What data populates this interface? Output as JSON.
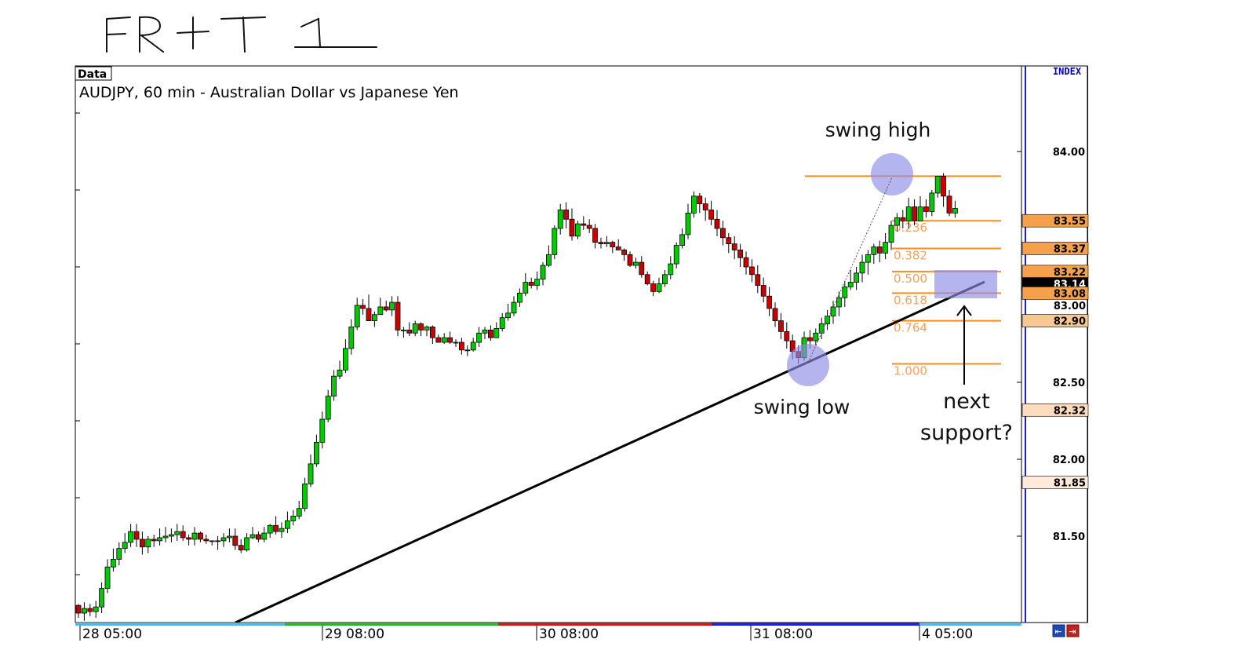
{
  "handwritten_title": "FR + T 1",
  "data_tab": "Data",
  "index_label": "INDEX",
  "annotations": {
    "swing_high": "swing high",
    "swing_low": "swing low",
    "next_support_line1": "next",
    "next_support_line2": "support?"
  },
  "colors": {
    "up_candle": "#00cc00",
    "down_candle": "#cc0000",
    "fib_line": "#ff8c1a",
    "fib_text": "#f2a35c",
    "highlight": "#8c8ce6",
    "trendline": "#000000",
    "axis_blue": "#0000c8"
  },
  "chart_data": {
    "type": "candlestick",
    "title": "AUDJPY, 60 min - Australian Dollar vs Japanese Yen",
    "ylim": [
      81.0,
      84.4
    ],
    "yticks": [
      "84.00",
      "82.50",
      "82.00",
      "81.50"
    ],
    "price_boxes": [
      {
        "label": "83.55",
        "value": 83.55,
        "color": "#f5a04b"
      },
      {
        "label": "83.37",
        "value": 83.37,
        "color": "#f5a04b"
      },
      {
        "label": "83.22",
        "value": 83.22,
        "color": "#f5a04b"
      },
      {
        "label": "83.14",
        "value": 83.14,
        "color": "#000000"
      },
      {
        "label": "83.08",
        "value": 83.08,
        "color": "#f5a04b"
      },
      {
        "label": "83.00",
        "value": 83.0,
        "color": "#ffffff"
      },
      {
        "label": "82.90",
        "value": 82.9,
        "color": "#f8c892"
      },
      {
        "label": "82.32",
        "value": 82.32,
        "color": "#fbdcbc"
      },
      {
        "label": "81.85",
        "value": 81.85,
        "color": "#fdeada"
      }
    ],
    "x_labels": [
      "28 05:00",
      "29 08:00",
      "30 08:00",
      "31 08:00",
      "4 05:00"
    ],
    "fib_levels": [
      {
        "ratio": "",
        "price": 83.84
      },
      {
        "ratio": "0.236",
        "price": 83.55
      },
      {
        "ratio": "0.382",
        "price": 83.37
      },
      {
        "ratio": "0.500",
        "price": 83.22
      },
      {
        "ratio": "0.618",
        "price": 83.08
      },
      {
        "ratio": "0.764",
        "price": 82.9
      },
      {
        "ratio": "1.000",
        "price": 82.62
      }
    ],
    "trendline": {
      "from": [
        29,
        81.0
      ],
      "to": [
        159,
        83.14
      ]
    },
    "candles": [
      [
        81.05,
        81.0,
        81.06,
        80.97
      ],
      [
        81.0,
        81.03,
        81.07,
        80.95
      ],
      [
        81.03,
        81.01,
        81.06,
        80.98
      ],
      [
        81.01,
        81.04,
        81.08,
        80.97
      ],
      [
        81.04,
        81.16,
        81.2,
        81.0
      ],
      [
        81.16,
        81.3,
        81.35,
        81.13
      ],
      [
        81.3,
        81.35,
        81.42,
        81.27
      ],
      [
        81.35,
        81.42,
        81.46,
        81.31
      ],
      [
        81.42,
        81.46,
        81.52,
        81.39
      ],
      [
        81.46,
        81.53,
        81.58,
        81.43
      ],
      [
        81.53,
        81.48,
        81.58,
        81.43
      ],
      [
        81.48,
        81.43,
        81.53,
        81.38
      ],
      [
        81.43,
        81.48,
        81.5,
        81.39
      ],
      [
        81.48,
        81.47,
        81.51,
        81.43
      ],
      [
        81.47,
        81.49,
        81.55,
        81.44
      ],
      [
        81.49,
        81.5,
        81.56,
        81.46
      ],
      [
        81.5,
        81.51,
        81.55,
        81.46
      ],
      [
        81.51,
        81.53,
        81.58,
        81.47
      ],
      [
        81.53,
        81.49,
        81.57,
        81.47
      ],
      [
        81.49,
        81.48,
        81.51,
        81.44
      ],
      [
        81.48,
        81.52,
        81.56,
        81.44
      ],
      [
        81.52,
        81.48,
        81.53,
        81.46
      ],
      [
        81.48,
        81.47,
        81.51,
        81.45
      ],
      [
        81.47,
        81.47,
        81.47,
        81.44
      ],
      [
        81.47,
        81.47,
        81.5,
        81.41
      ],
      [
        81.47,
        81.49,
        81.52,
        81.43
      ],
      [
        81.49,
        81.5,
        81.55,
        81.46
      ],
      [
        81.5,
        81.44,
        81.55,
        81.41
      ],
      [
        81.44,
        81.41,
        81.48,
        81.39
      ],
      [
        81.41,
        81.49,
        81.52,
        81.4
      ],
      [
        81.49,
        81.51,
        81.56,
        81.48
      ],
      [
        81.51,
        81.48,
        81.53,
        81.46
      ],
      [
        81.48,
        81.52,
        81.56,
        81.46
      ],
      [
        81.52,
        81.57,
        81.58,
        81.49
      ],
      [
        81.57,
        81.53,
        81.63,
        81.51
      ],
      [
        81.53,
        81.55,
        81.59,
        81.49
      ],
      [
        81.55,
        81.6,
        81.66,
        81.52
      ],
      [
        81.6,
        81.63,
        81.67,
        81.57
      ],
      [
        81.63,
        81.68,
        81.73,
        81.61
      ],
      [
        81.68,
        81.84,
        81.88,
        81.66
      ],
      [
        81.84,
        81.97,
        82.03,
        81.82
      ],
      [
        81.97,
        82.11,
        82.16,
        81.95
      ],
      [
        82.11,
        82.26,
        82.31,
        82.07
      ],
      [
        82.26,
        82.41,
        82.45,
        82.24
      ],
      [
        82.41,
        82.54,
        82.58,
        82.38
      ],
      [
        82.54,
        82.58,
        82.64,
        82.52
      ],
      [
        82.58,
        82.72,
        82.78,
        82.56
      ],
      [
        82.72,
        82.86,
        82.91,
        82.68
      ],
      [
        82.86,
        83.0,
        83.05,
        82.84
      ],
      [
        83.0,
        82.98,
        83.04,
        82.94
      ],
      [
        82.98,
        82.9,
        83.07,
        82.9
      ],
      [
        82.9,
        82.94,
        82.96,
        82.86
      ],
      [
        82.94,
        82.99,
        83.05,
        82.94
      ],
      [
        82.99,
        82.97,
        83.03,
        82.96
      ],
      [
        82.97,
        83.02,
        83.06,
        82.93
      ],
      [
        83.02,
        82.84,
        83.06,
        82.8
      ],
      [
        82.84,
        82.84,
        82.86,
        82.79
      ],
      [
        82.84,
        82.82,
        82.89,
        82.8
      ],
      [
        82.82,
        82.88,
        82.9,
        82.8
      ],
      [
        82.88,
        82.84,
        82.89,
        82.8
      ],
      [
        82.84,
        82.86,
        82.87,
        82.8
      ],
      [
        82.86,
        82.79,
        82.87,
        82.75
      ],
      [
        82.79,
        82.76,
        82.81,
        82.76
      ],
      [
        82.76,
        82.79,
        82.82,
        82.75
      ],
      [
        82.79,
        82.76,
        82.83,
        82.75
      ],
      [
        82.76,
        82.76,
        82.78,
        82.73
      ],
      [
        82.76,
        82.71,
        82.79,
        82.68
      ],
      [
        82.71,
        82.71,
        82.74,
        82.67
      ],
      [
        82.71,
        82.76,
        82.79,
        82.7
      ],
      [
        82.76,
        82.82,
        82.86,
        82.73
      ],
      [
        82.82,
        82.84,
        82.86,
        82.78
      ],
      [
        82.84,
        82.79,
        82.87,
        82.77
      ],
      [
        82.79,
        82.85,
        82.89,
        82.79
      ],
      [
        82.85,
        82.92,
        82.95,
        82.83
      ],
      [
        82.92,
        82.95,
        83.01,
        82.9
      ],
      [
        82.95,
        83.02,
        83.06,
        82.93
      ],
      [
        83.02,
        83.08,
        83.11,
        82.99
      ],
      [
        83.08,
        83.15,
        83.21,
        83.06
      ],
      [
        83.15,
        83.13,
        83.18,
        83.11
      ],
      [
        83.13,
        83.17,
        83.22,
        83.1
      ],
      [
        83.17,
        83.26,
        83.28,
        83.13
      ],
      [
        83.26,
        83.33,
        83.39,
        83.25
      ],
      [
        83.33,
        83.5,
        83.52,
        83.3
      ],
      [
        83.5,
        83.62,
        83.66,
        83.46
      ],
      [
        83.62,
        83.56,
        83.67,
        83.5
      ],
      [
        83.56,
        83.45,
        83.63,
        83.42
      ],
      [
        83.45,
        83.53,
        83.55,
        83.43
      ],
      [
        83.53,
        83.52,
        83.58,
        83.49
      ],
      [
        83.52,
        83.5,
        83.56,
        83.47
      ],
      [
        83.5,
        83.41,
        83.53,
        83.37
      ],
      [
        83.41,
        83.4,
        83.44,
        83.37
      ],
      [
        83.4,
        83.41,
        83.45,
        83.38
      ],
      [
        83.41,
        83.38,
        83.42,
        83.34
      ],
      [
        83.38,
        83.36,
        83.43,
        83.36
      ],
      [
        83.36,
        83.33,
        83.37,
        83.29
      ],
      [
        83.33,
        83.26,
        83.35,
        83.25
      ],
      [
        83.26,
        83.28,
        83.31,
        83.24
      ],
      [
        83.28,
        83.2,
        83.32,
        83.18
      ],
      [
        83.2,
        83.14,
        83.22,
        83.13
      ],
      [
        83.14,
        83.09,
        83.16,
        83.06
      ],
      [
        83.09,
        83.14,
        83.18,
        83.08
      ],
      [
        83.14,
        83.2,
        83.23,
        83.12
      ],
      [
        83.2,
        83.27,
        83.32,
        83.17
      ],
      [
        83.27,
        83.39,
        83.41,
        83.24
      ],
      [
        83.39,
        83.46,
        83.5,
        83.37
      ],
      [
        83.46,
        83.6,
        83.66,
        83.43
      ],
      [
        83.6,
        83.71,
        83.74,
        83.57
      ],
      [
        83.71,
        83.66,
        83.73,
        83.6
      ],
      [
        83.66,
        83.62,
        83.7,
        83.55
      ],
      [
        83.62,
        83.56,
        83.68,
        83.52
      ],
      [
        83.56,
        83.5,
        83.62,
        83.45
      ],
      [
        83.5,
        83.44,
        83.55,
        83.39
      ],
      [
        83.44,
        83.4,
        83.47,
        83.34
      ],
      [
        83.4,
        83.36,
        83.45,
        83.3
      ],
      [
        83.36,
        83.31,
        83.4,
        83.25
      ],
      [
        83.31,
        83.25,
        83.35,
        83.2
      ],
      [
        83.25,
        83.2,
        83.3,
        83.15
      ],
      [
        83.2,
        83.13,
        83.26,
        83.08
      ],
      [
        83.13,
        83.06,
        83.18,
        83.02
      ],
      [
        83.06,
        82.98,
        83.12,
        82.93
      ],
      [
        82.98,
        82.9,
        83.02,
        82.86
      ],
      [
        82.9,
        82.83,
        82.95,
        82.78
      ],
      [
        82.83,
        82.77,
        82.89,
        82.72
      ],
      [
        82.77,
        82.7,
        82.81,
        82.65
      ],
      [
        82.7,
        82.66,
        82.74,
        82.62
      ],
      [
        82.66,
        82.79,
        82.83,
        82.64
      ],
      [
        82.79,
        82.77,
        82.84,
        82.72
      ],
      [
        82.77,
        82.82,
        82.85,
        82.74
      ],
      [
        82.82,
        82.88,
        82.92,
        82.78
      ],
      [
        82.88,
        82.93,
        82.97,
        82.84
      ],
      [
        82.93,
        82.99,
        83.03,
        82.88
      ],
      [
        82.99,
        83.05,
        83.09,
        82.93
      ],
      [
        83.05,
        83.12,
        83.16,
        82.99
      ],
      [
        83.12,
        83.15,
        83.23,
        83.1
      ],
      [
        83.15,
        83.21,
        83.25,
        83.1
      ],
      [
        83.21,
        83.28,
        83.33,
        83.15
      ],
      [
        83.28,
        83.33,
        83.36,
        83.2
      ],
      [
        83.33,
        83.38,
        83.4,
        83.27
      ],
      [
        83.38,
        83.34,
        83.42,
        83.28
      ],
      [
        83.34,
        83.41,
        83.47,
        83.3
      ],
      [
        83.41,
        83.52,
        83.55,
        83.36
      ],
      [
        83.52,
        83.57,
        83.6,
        83.48
      ],
      [
        83.57,
        83.55,
        83.62,
        83.5
      ],
      [
        83.55,
        83.64,
        83.7,
        83.5
      ],
      [
        83.64,
        83.55,
        83.69,
        83.52
      ],
      [
        83.55,
        83.64,
        83.71,
        83.55
      ],
      [
        83.64,
        83.61,
        83.69,
        83.57
      ],
      [
        83.61,
        83.73,
        83.75,
        83.58
      ],
      [
        83.73,
        83.84,
        83.84,
        83.7
      ],
      [
        83.84,
        83.71,
        83.86,
        83.64
      ],
      [
        83.71,
        83.6,
        83.75,
        83.58
      ],
      [
        83.6,
        83.63,
        83.68,
        83.57
      ]
    ]
  }
}
